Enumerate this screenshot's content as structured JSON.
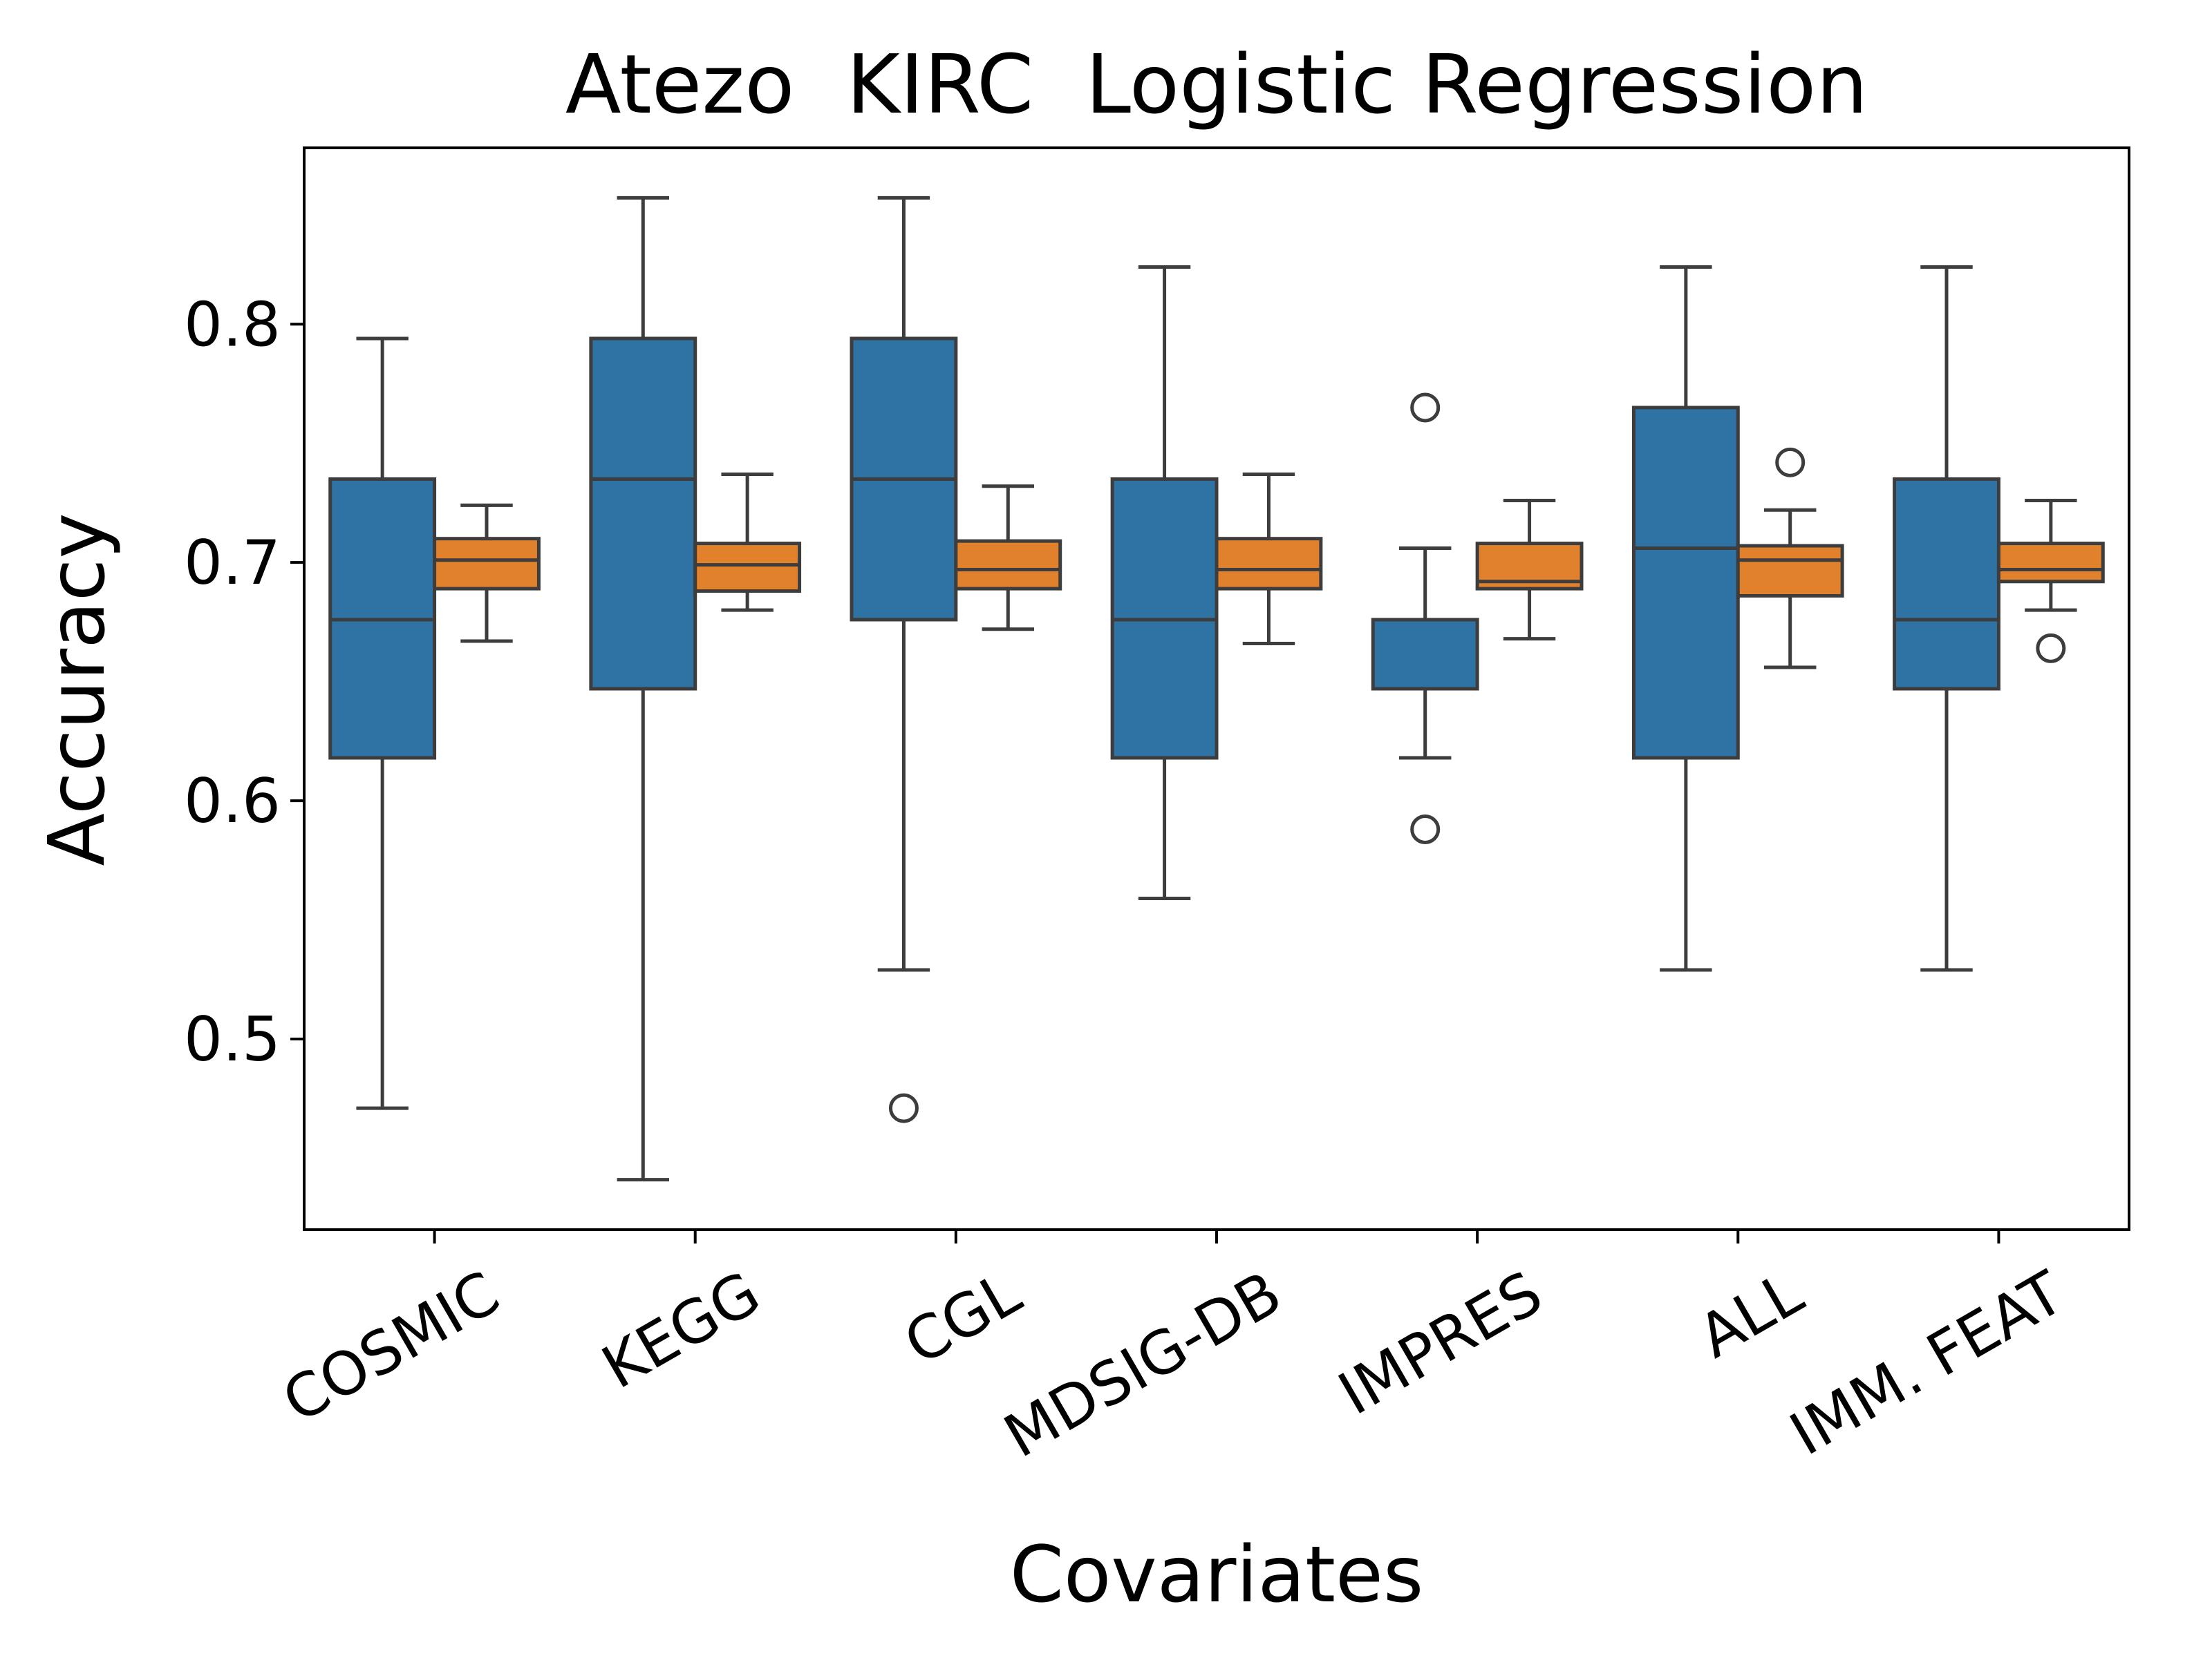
{
  "chart_data": {
    "type": "boxplot",
    "title": "Atezo  KIRC  Logistic Regression",
    "xlabel": "Covariates",
    "ylabel": "Accuracy",
    "ylim": [
      0.42,
      0.874
    ],
    "yticks": [
      "0.5",
      "0.6",
      "0.7",
      "0.8"
    ],
    "grid": false,
    "categories": [
      "COSMIC",
      "KEGG",
      "CGL",
      "MDSIG-DB",
      "IMPRES",
      "ALL",
      "IMM. FEAT"
    ],
    "series": [
      {
        "color": "#2f72a4",
        "boxes": [
          {
            "whisker_low": 0.471,
            "q1": 0.618,
            "median": 0.676,
            "q3": 0.735,
            "whisker_high": 0.794,
            "outliers": []
          },
          {
            "whisker_low": 0.441,
            "q1": 0.647,
            "median": 0.735,
            "q3": 0.794,
            "whisker_high": 0.853,
            "outliers": []
          },
          {
            "whisker_low": 0.529,
            "q1": 0.676,
            "median": 0.735,
            "q3": 0.794,
            "whisker_high": 0.853,
            "outliers": [
              0.471
            ]
          },
          {
            "whisker_low": 0.559,
            "q1": 0.618,
            "median": 0.676,
            "q3": 0.735,
            "whisker_high": 0.824,
            "outliers": []
          },
          {
            "whisker_low": 0.618,
            "q1": 0.647,
            "median": 0.647,
            "q3": 0.676,
            "whisker_high": 0.706,
            "outliers": [
              0.588,
              0.765
            ]
          },
          {
            "whisker_low": 0.529,
            "q1": 0.618,
            "median": 0.706,
            "q3": 0.765,
            "whisker_high": 0.824,
            "outliers": []
          },
          {
            "whisker_low": 0.529,
            "q1": 0.647,
            "median": 0.676,
            "q3": 0.735,
            "whisker_high": 0.824,
            "outliers": []
          }
        ]
      },
      {
        "color": "#e1812c",
        "boxes": [
          {
            "whisker_low": 0.667,
            "q1": 0.689,
            "median": 0.701,
            "q3": 0.71,
            "whisker_high": 0.724,
            "outliers": []
          },
          {
            "whisker_low": 0.68,
            "q1": 0.688,
            "median": 0.699,
            "q3": 0.708,
            "whisker_high": 0.737,
            "outliers": []
          },
          {
            "whisker_low": 0.672,
            "q1": 0.689,
            "median": 0.697,
            "q3": 0.709,
            "whisker_high": 0.732,
            "outliers": []
          },
          {
            "whisker_low": 0.666,
            "q1": 0.689,
            "median": 0.697,
            "q3": 0.71,
            "whisker_high": 0.737,
            "outliers": []
          },
          {
            "whisker_low": 0.668,
            "q1": 0.689,
            "median": 0.692,
            "q3": 0.708,
            "whisker_high": 0.726,
            "outliers": []
          },
          {
            "whisker_low": 0.656,
            "q1": 0.686,
            "median": 0.701,
            "q3": 0.707,
            "whisker_high": 0.722,
            "outliers": [
              0.742
            ]
          },
          {
            "whisker_low": 0.68,
            "q1": 0.692,
            "median": 0.697,
            "q3": 0.708,
            "whisker_high": 0.726,
            "outliers": [
              0.664
            ]
          }
        ]
      }
    ]
  }
}
